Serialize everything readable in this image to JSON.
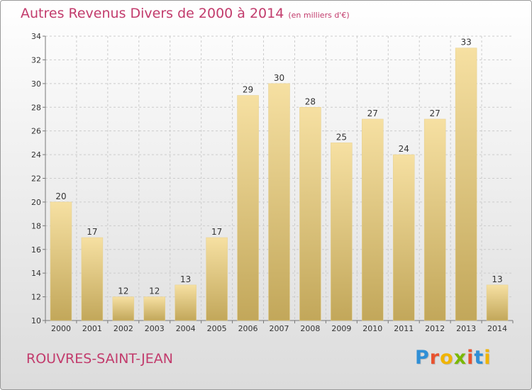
{
  "title": "Autres Revenus Divers de 2000 à 2014",
  "subtitle": "(en milliers d'€)",
  "place_label": "ROUVRES-SAINT-JEAN",
  "logo": {
    "text": "Proxiti",
    "letter_colors": [
      "#2f8fd6",
      "#e8522f",
      "#f0b400",
      "#7ab800",
      "#e8522f",
      "#2f8fd6",
      "#f0b400"
    ]
  },
  "colors": {
    "title": "#c23b6c",
    "bar_light": "#f6e0a2",
    "bar_dark": "#c2a75a",
    "grid": "#cccccc"
  },
  "chart_data": {
    "type": "bar",
    "categories": [
      "2000",
      "2001",
      "2002",
      "2003",
      "2004",
      "2005",
      "2006",
      "2007",
      "2008",
      "2009",
      "2010",
      "2011",
      "2012",
      "2013",
      "2014"
    ],
    "values": [
      20,
      17,
      12,
      12,
      13,
      17,
      29,
      30,
      28,
      25,
      27,
      24,
      27,
      33,
      13
    ],
    "y_ticks": [
      10,
      12,
      14,
      16,
      18,
      20,
      22,
      24,
      26,
      28,
      30,
      32,
      34
    ],
    "ylim": [
      10,
      34
    ],
    "grid": true,
    "grid_style": "dashed",
    "data_labels": true
  }
}
